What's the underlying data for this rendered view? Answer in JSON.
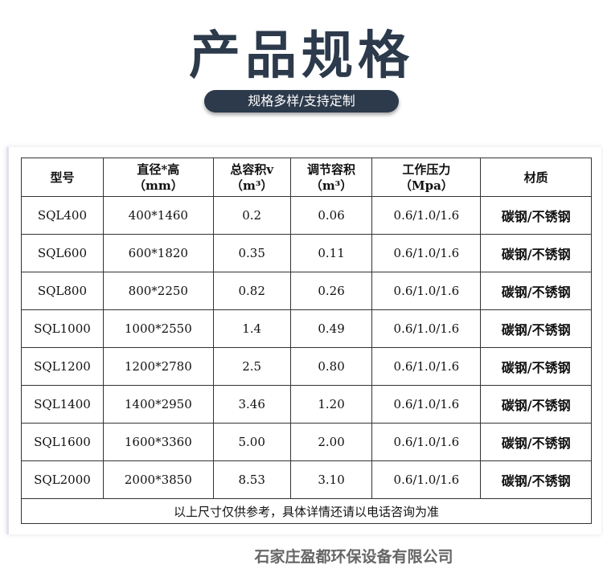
{
  "title": "产品规格",
  "subtitle": "规格多样/支持定制",
  "table": {
    "headers": [
      {
        "line1": "型号",
        "line2": ""
      },
      {
        "line1": "直径*高",
        "line2": "（mm）"
      },
      {
        "line1": "总容积v",
        "line2": "（m³）"
      },
      {
        "line1": "调节容积",
        "line2": "（m³）"
      },
      {
        "line1": "工作压力",
        "line2": "（Mpa）"
      },
      {
        "line1": "材质",
        "line2": ""
      }
    ],
    "rows": [
      [
        "SQL400",
        "400*1460",
        "0.2",
        "0.06",
        "0.6/1.0/1.6",
        "碳钢/不锈钢"
      ],
      [
        "SQL600",
        "600*1820",
        "0.35",
        "0.11",
        "0.6/1.0/1.6",
        "碳钢/不锈钢"
      ],
      [
        "SQL800",
        "800*2250",
        "0.82",
        "0.26",
        "0.6/1.0/1.6",
        "碳钢/不锈钢"
      ],
      [
        "SQL1000",
        "1000*2550",
        "1.4",
        "0.49",
        "0.6/1.0/1.6",
        "碳钢/不锈钢"
      ],
      [
        "SQL1200",
        "1200*2780",
        "2.5",
        "0.80",
        "0.6/1.0/1.6",
        "碳钢/不锈钢"
      ],
      [
        "SQL1400",
        "1400*2950",
        "3.46",
        "1.20",
        "0.6/1.0/1.6",
        "碳钢/不锈钢"
      ],
      [
        "SQL1600",
        "1600*3360",
        "5.00",
        "2.00",
        "0.6/1.0/1.6",
        "碳钢/不锈钢"
      ],
      [
        "SQL2000",
        "2000*3850",
        "8.53",
        "3.10",
        "0.6/1.0/1.6",
        "碳钢/不锈钢"
      ]
    ],
    "note": "以上尺寸仅供参考，具体详情还请以电话咨询为准"
  },
  "company": "石家庄盈都环保设备有限公司"
}
